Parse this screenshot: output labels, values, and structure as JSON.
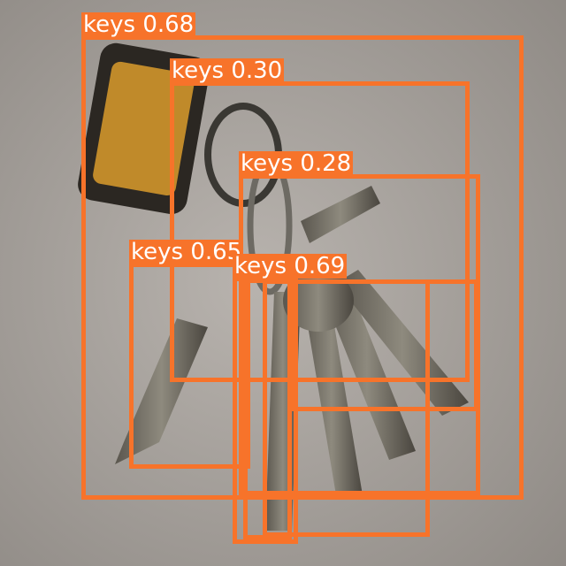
{
  "detections": [
    {
      "label": "keys 0.68"
    },
    {
      "label": "keys 0.30"
    },
    {
      "label": "keys 0.28"
    },
    {
      "label": "keys 0.65"
    },
    {
      "label": "keys 0.69"
    }
  ]
}
